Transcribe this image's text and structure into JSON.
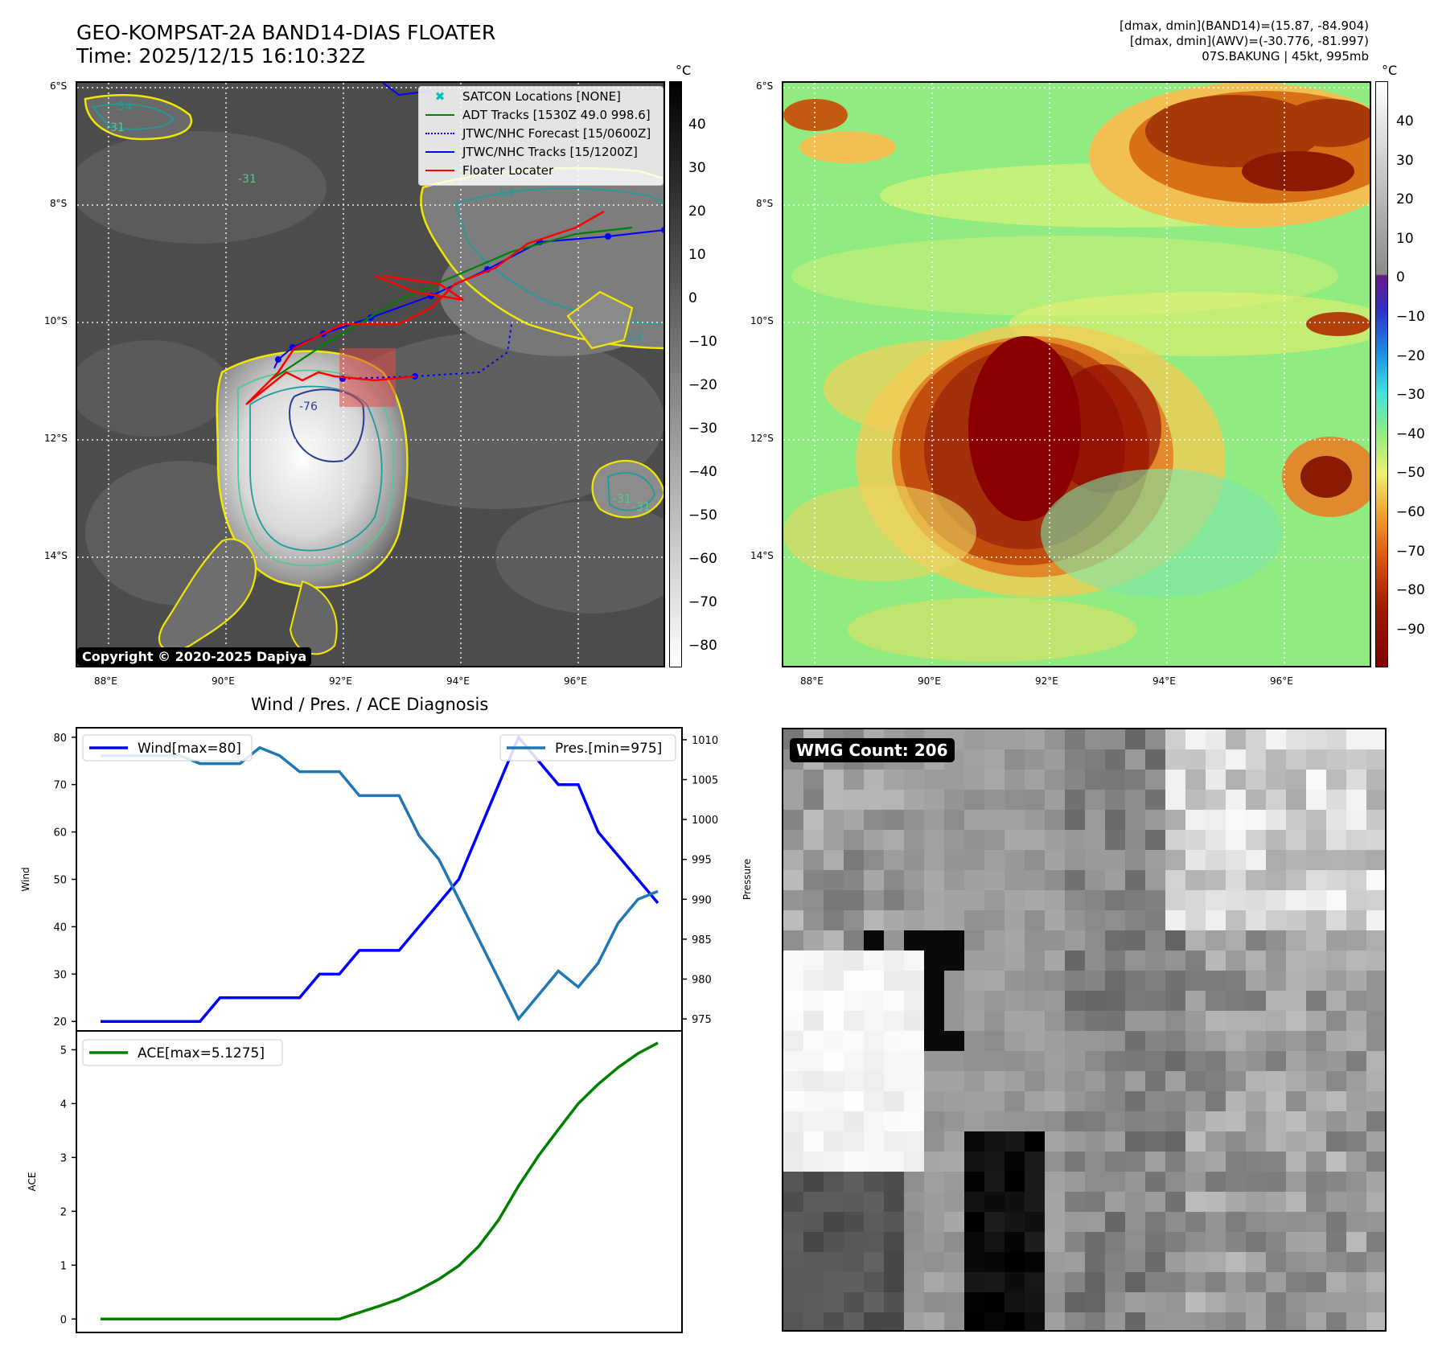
{
  "header": {
    "title_line1": "GEO-KOMPSAT-2A BAND14-DIAS FLOATER",
    "title_line2": "Time: 2025/12/15 16:10:32Z",
    "info_line1": "[dmax, dmin](BAND14)=(15.87, -84.904)",
    "info_line2": "[dmax, dmin](AWV)=(-30.776, -81.997)",
    "info_line3": "07S.BAKUNG | 45kt, 995mb"
  },
  "map": {
    "lat_labels": [
      "6°S",
      "8°S",
      "10°S",
      "12°S",
      "14°S"
    ],
    "lon_labels": [
      "88°E",
      "90°E",
      "92°E",
      "94°E",
      "96°E"
    ],
    "copyright": "Copyright © 2020-2025 Dapiya",
    "legend": [
      {
        "label": "SATCON Locations [NONE]",
        "color": "#00bfbf",
        "style": "x"
      },
      {
        "label": "ADT Tracks [1530Z 49.0 998.6]",
        "color": "#008000",
        "style": "solid"
      },
      {
        "label": "JTWC/NHC Forecast [15/0600Z]",
        "color": "#0000ff",
        "style": "dotted"
      },
      {
        "label": "JTWC/NHC Tracks [15/1200Z]",
        "color": "#0000ff",
        "style": "dots"
      },
      {
        "label": "Floater Locater",
        "color": "#ff0000",
        "style": "solid"
      }
    ],
    "contour_labels": [
      "-54",
      "-31",
      "-31",
      "-76",
      "-31",
      "-31",
      "-54",
      "-54"
    ]
  },
  "colorbar_left": {
    "unit": "°C",
    "ticks": [
      "40",
      "30",
      "20",
      "10",
      "0",
      "−10",
      "−20",
      "−30",
      "−40",
      "−50",
      "−60",
      "−70",
      "−80"
    ]
  },
  "colorbar_right": {
    "unit": "°C",
    "ticks": [
      "40",
      "30",
      "20",
      "10",
      "0",
      "−10",
      "−20",
      "−30",
      "−40",
      "−50",
      "−60",
      "−70",
      "−80",
      "−90"
    ]
  },
  "wmg": {
    "label": "WMG Count: 206"
  },
  "colors": {
    "wind": "#0000ff",
    "pressure": "#1f77b4",
    "ace": "#008000"
  },
  "chart_data": [
    {
      "type": "line",
      "title": "Wind / Pres. / ACE Diagnosis",
      "ylabel": "Wind",
      "ylabel_right": "Pressure",
      "ylim": [
        18,
        82
      ],
      "ylim_right": [
        973.5,
        1011.5
      ],
      "yticks": [
        20,
        30,
        40,
        50,
        60,
        70,
        80
      ],
      "yticks_right": [
        975,
        980,
        985,
        990,
        995,
        1000,
        1005,
        1010
      ],
      "x": [
        0,
        1,
        2,
        3,
        4,
        5,
        6,
        7,
        8,
        9,
        10,
        11,
        12,
        13,
        14,
        15,
        16,
        17,
        18,
        19,
        20,
        21,
        22,
        23,
        24,
        25,
        26,
        27,
        28
      ],
      "series": [
        {
          "name": "Wind[max=80]",
          "axis": "left",
          "values": [
            20,
            20,
            20,
            20,
            20,
            20,
            25,
            25,
            25,
            25,
            25,
            30,
            30,
            35,
            35,
            35,
            40,
            45,
            50,
            60,
            70,
            80,
            75,
            70,
            70,
            60,
            55,
            50,
            45
          ]
        },
        {
          "name": "Pres.[min=975]",
          "axis": "right",
          "values": [
            1008,
            1008,
            1008,
            1008,
            1008,
            1007,
            1007,
            1007,
            1009,
            1008,
            1006,
            1006,
            1006,
            1003,
            1003,
            1003,
            998,
            995,
            990,
            985,
            980,
            975,
            978,
            981,
            979,
            982,
            987,
            990,
            991
          ]
        }
      ]
    },
    {
      "type": "line",
      "ylabel": "ACE",
      "ylim": [
        -0.25,
        5.35
      ],
      "yticks": [
        0,
        1,
        2,
        3,
        4,
        5
      ],
      "x": [
        0,
        1,
        2,
        3,
        4,
        5,
        6,
        7,
        8,
        9,
        10,
        11,
        12,
        13,
        14,
        15,
        16,
        17,
        18,
        19,
        20,
        21,
        22,
        23,
        24,
        25,
        26,
        27,
        28
      ],
      "series": [
        {
          "name": "ACE[max=5.1275]",
          "values": [
            0,
            0,
            0,
            0,
            0,
            0,
            0,
            0,
            0,
            0,
            0,
            0,
            0.0,
            0.12,
            0.24,
            0.37,
            0.54,
            0.74,
            0.99,
            1.35,
            1.84,
            2.47,
            3.03,
            3.52,
            4.0,
            4.36,
            4.67,
            4.93,
            5.1275
          ]
        }
      ]
    }
  ]
}
